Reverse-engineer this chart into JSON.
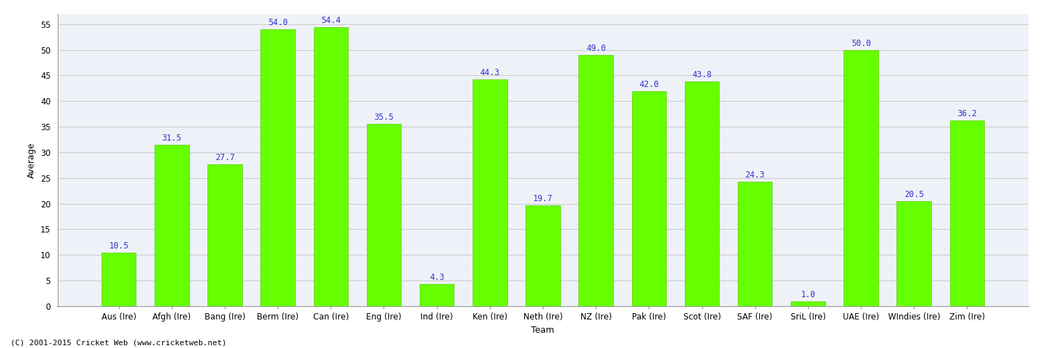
{
  "categories": [
    "Aus (Ire)",
    "Afgh (Ire)",
    "Bang (Ire)",
    "Berm (Ire)",
    "Can (Ire)",
    "Eng (Ire)",
    "Ind (Ire)",
    "Ken (Ire)",
    "Neth (Ire)",
    "NZ (Ire)",
    "Pak (Ire)",
    "Scot (Ire)",
    "SAF (Ire)",
    "SriL (Ire)",
    "UAE (Ire)",
    "WIndies (Ire)",
    "Zim (Ire)"
  ],
  "values": [
    10.5,
    31.5,
    27.7,
    54.0,
    54.4,
    35.5,
    4.3,
    44.3,
    19.7,
    49.0,
    42.0,
    43.8,
    24.3,
    1.0,
    50.0,
    20.5,
    36.2
  ],
  "bar_color": "#66ff00",
  "bar_edge_color": "#55cc00",
  "label_color": "#3333cc",
  "xlabel": "Team",
  "ylabel": "Average",
  "ylim": [
    0,
    57
  ],
  "yticks": [
    0,
    5,
    10,
    15,
    20,
    25,
    30,
    35,
    40,
    45,
    50,
    55
  ],
  "grid_color": "#cccccc",
  "plot_bg_color": "#eef2f8",
  "fig_bg_color": "#ffffff",
  "footer": "(C) 2001-2015 Cricket Web (www.cricketweb.net)",
  "tick_fontsize": 8.5,
  "value_fontsize": 8.5,
  "axis_label_fontsize": 9,
  "footer_fontsize": 8
}
